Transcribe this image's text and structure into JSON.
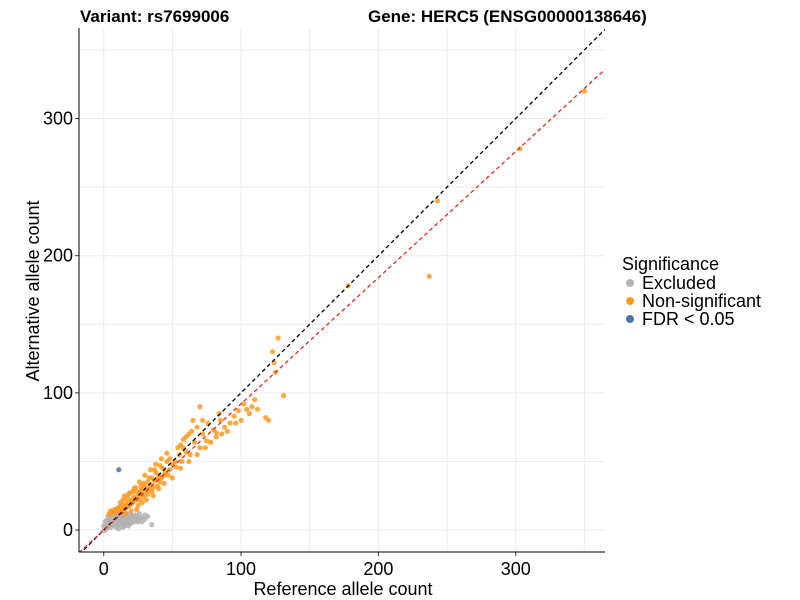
{
  "title": {
    "variant": "Variant: rs7699006",
    "gene": "Gene: HERC5 (ENSG00000138646)"
  },
  "legend": {
    "title": "Significance",
    "entries": [
      {
        "label": "Excluded",
        "color": "#b3b3b3"
      },
      {
        "label": "Non-significant",
        "color": "#ff9a1f"
      },
      {
        "label": "FDR < 0.05",
        "color": "#4a74a8"
      }
    ]
  },
  "chart_data": {
    "type": "scatter",
    "xlabel": "Reference allele count",
    "ylabel": "Alternative allele count",
    "xlim": [
      -18,
      365
    ],
    "ylim": [
      -16,
      366
    ],
    "x_ticks": [
      0,
      100,
      200,
      300
    ],
    "y_ticks": [
      0,
      100,
      200,
      300
    ],
    "x_minor_gridlines": [
      50,
      150,
      250,
      350
    ],
    "y_minor_gridlines": [
      50,
      150,
      250,
      350
    ],
    "grid": true,
    "legend_position": "right",
    "reference_lines": [
      {
        "name": "y = x",
        "slope": 1,
        "intercept": 0,
        "color": "#000000",
        "style": "dashed"
      },
      {
        "name": "fit",
        "slope": 0.92,
        "intercept": 0,
        "color": "#e8281f",
        "style": "dashed"
      }
    ],
    "series": [
      {
        "name": "Excluded",
        "color": "#b3b3b3",
        "points": [
          [
            1,
            2
          ],
          [
            2,
            1
          ],
          [
            2,
            4
          ],
          [
            3,
            2
          ],
          [
            3,
            5
          ],
          [
            4,
            3
          ],
          [
            4,
            6
          ],
          [
            5,
            2
          ],
          [
            5,
            5
          ],
          [
            5,
            8
          ],
          [
            6,
            4
          ],
          [
            6,
            7
          ],
          [
            6,
            10
          ],
          [
            7,
            3
          ],
          [
            7,
            6
          ],
          [
            7,
            9
          ],
          [
            8,
            5
          ],
          [
            8,
            8
          ],
          [
            8,
            11
          ],
          [
            9,
            4
          ],
          [
            9,
            7
          ],
          [
            9,
            12
          ],
          [
            10,
            6
          ],
          [
            10,
            9
          ],
          [
            10,
            3
          ],
          [
            11,
            8
          ],
          [
            11,
            11
          ],
          [
            11,
            5
          ],
          [
            12,
            7
          ],
          [
            12,
            10
          ],
          [
            12,
            13
          ],
          [
            13,
            6
          ],
          [
            13,
            9
          ],
          [
            13,
            12
          ],
          [
            14,
            8
          ],
          [
            14,
            11
          ],
          [
            14,
            5
          ],
          [
            15,
            7
          ],
          [
            15,
            10
          ],
          [
            15,
            13
          ],
          [
            16,
            6
          ],
          [
            16,
            9
          ],
          [
            17,
            8
          ],
          [
            17,
            12
          ],
          [
            18,
            7
          ],
          [
            18,
            10
          ],
          [
            19,
            9
          ],
          [
            19,
            12
          ],
          [
            20,
            8
          ],
          [
            20,
            11
          ],
          [
            21,
            10
          ],
          [
            22,
            9
          ],
          [
            23,
            11
          ],
          [
            24,
            10
          ],
          [
            25,
            8
          ],
          [
            26,
            12
          ],
          [
            28,
            9
          ],
          [
            30,
            8
          ],
          [
            32,
            10
          ],
          [
            0,
            3
          ],
          [
            1,
            6
          ],
          [
            3,
            8
          ],
          [
            4,
            9
          ],
          [
            2,
            7
          ],
          [
            8,
            14
          ],
          [
            10,
            15
          ],
          [
            12,
            16
          ],
          [
            6,
            13
          ],
          [
            9,
            2
          ],
          [
            13,
            4
          ],
          [
            16,
            4
          ],
          [
            20,
            5
          ],
          [
            22,
            6
          ],
          [
            25,
            6
          ],
          [
            28,
            6
          ],
          [
            35,
            4
          ],
          [
            3,
            10
          ],
          [
            7,
            12
          ],
          [
            0,
            0
          ],
          [
            1,
            0
          ],
          [
            11,
            1
          ],
          [
            14,
            2
          ],
          [
            18,
            3
          ],
          [
            5,
            11
          ],
          [
            9,
            15
          ],
          [
            15,
            3
          ],
          [
            19,
            5
          ],
          [
            24,
            7
          ],
          [
            27,
            9
          ],
          [
            30,
            11
          ]
        ]
      },
      {
        "name": "Non-significant",
        "color": "#ff9a1f",
        "points": [
          [
            350,
            320
          ],
          [
            303,
            278
          ],
          [
            243,
            240
          ],
          [
            237,
            185
          ],
          [
            178,
            178
          ],
          [
            131,
            98
          ],
          [
            127,
            140
          ],
          [
            123,
            130
          ],
          [
            124,
            122
          ],
          [
            125,
            115
          ],
          [
            118,
            82
          ],
          [
            120,
            80
          ],
          [
            110,
            95
          ],
          [
            106,
            85
          ],
          [
            104,
            88
          ],
          [
            102,
            92
          ],
          [
            100,
            80
          ],
          [
            98,
            87
          ],
          [
            95,
            83
          ],
          [
            92,
            78
          ],
          [
            88,
            75
          ],
          [
            85,
            80
          ],
          [
            82,
            71
          ],
          [
            80,
            73
          ],
          [
            72,
            70
          ],
          [
            70,
            90
          ],
          [
            68,
            75
          ],
          [
            65,
            80
          ],
          [
            62,
            70
          ],
          [
            60,
            68
          ],
          [
            58,
            60
          ],
          [
            55,
            55
          ],
          [
            52,
            50
          ],
          [
            50,
            48
          ],
          [
            48,
            52
          ],
          [
            46,
            56
          ],
          [
            45,
            42
          ],
          [
            43,
            45
          ],
          [
            42,
            38
          ],
          [
            40,
            40
          ],
          [
            38,
            42
          ],
          [
            37,
            36
          ],
          [
            35,
            38
          ],
          [
            34,
            33
          ],
          [
            33,
            30
          ],
          [
            32,
            35
          ],
          [
            31,
            28
          ],
          [
            30,
            32
          ],
          [
            29,
            30
          ],
          [
            28,
            26
          ],
          [
            27,
            29
          ],
          [
            26,
            27
          ],
          [
            25,
            25
          ],
          [
            24,
            28
          ],
          [
            23,
            22
          ],
          [
            22,
            24
          ],
          [
            21,
            20
          ],
          [
            20,
            22
          ],
          [
            19,
            18
          ],
          [
            18,
            20
          ],
          [
            17,
            17
          ],
          [
            16,
            19
          ],
          [
            15,
            16
          ],
          [
            14,
            18
          ],
          [
            13,
            15
          ],
          [
            12,
            17
          ],
          [
            11,
            14
          ],
          [
            10,
            16
          ],
          [
            9,
            13
          ],
          [
            8,
            15
          ],
          [
            7,
            14
          ],
          [
            6,
            12
          ],
          [
            5,
            14
          ],
          [
            4,
            12
          ],
          [
            36,
            25
          ],
          [
            40,
            30
          ],
          [
            44,
            34
          ],
          [
            50,
            38
          ],
          [
            56,
            45
          ],
          [
            62,
            50
          ],
          [
            68,
            55
          ],
          [
            74,
            60
          ],
          [
            78,
            64
          ],
          [
            86,
            70
          ],
          [
            90,
            72
          ],
          [
            30,
            40
          ],
          [
            26,
            35
          ],
          [
            22,
            30
          ],
          [
            18,
            26
          ],
          [
            34,
            44
          ],
          [
            38,
            48
          ],
          [
            42,
            52
          ],
          [
            46,
            50
          ],
          [
            54,
            60
          ],
          [
            58,
            66
          ],
          [
            64,
            72
          ],
          [
            70,
            60
          ],
          [
            66,
            64
          ],
          [
            60,
            57
          ],
          [
            56,
            62
          ],
          [
            25,
            18
          ],
          [
            28,
            20
          ],
          [
            31,
            22
          ],
          [
            35,
            28
          ],
          [
            39,
            32
          ],
          [
            24,
            15
          ],
          [
            20,
            14
          ],
          [
            16,
            12
          ],
          [
            27,
            32
          ],
          [
            29,
            34
          ],
          [
            33,
            38
          ],
          [
            14,
            22
          ],
          [
            12,
            20
          ],
          [
            15,
            25
          ],
          [
            17,
            23
          ],
          [
            19,
            27
          ],
          [
            21,
            28
          ],
          [
            23,
            31
          ],
          [
            26,
            22
          ],
          [
            29,
            24
          ],
          [
            32,
            26
          ],
          [
            36,
            31
          ],
          [
            41,
            35
          ],
          [
            47,
            40
          ],
          [
            53,
            46
          ],
          [
            57,
            50
          ],
          [
            63,
            55
          ],
          [
            75,
            65
          ],
          [
            82,
            68
          ],
          [
            96,
            78
          ],
          [
            108,
            90
          ],
          [
            112,
            88
          ],
          [
            84,
            85
          ],
          [
            76,
            78
          ],
          [
            72,
            80
          ],
          [
            48,
            44
          ],
          [
            44,
            40
          ],
          [
            39,
            37
          ],
          [
            37,
            44
          ],
          [
            41,
            47
          ]
        ]
      },
      {
        "name": "FDR < 0.05",
        "color": "#4a74a8",
        "points": [
          [
            11,
            44
          ]
        ]
      }
    ]
  }
}
